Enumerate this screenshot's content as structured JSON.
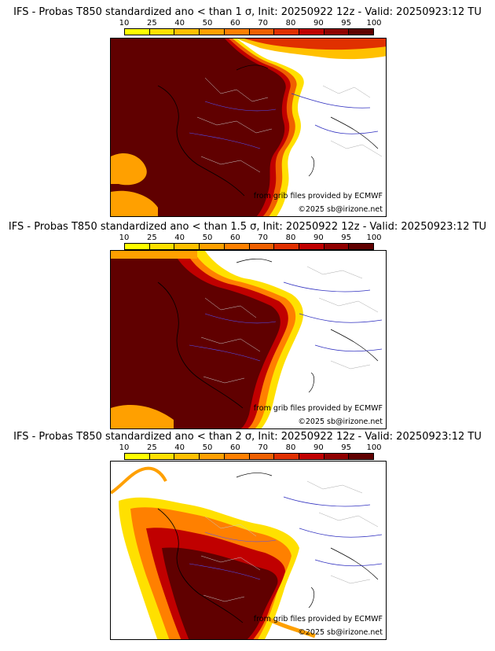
{
  "colorbar": {
    "ticks": [
      "10",
      "25",
      "40",
      "50",
      "60",
      "70",
      "80",
      "90",
      "95",
      "100"
    ],
    "colors": [
      "#ffff00",
      "#ffe000",
      "#ffc000",
      "#ffa000",
      "#ff8000",
      "#f06000",
      "#e03000",
      "#c00000",
      "#900000",
      "#600000"
    ]
  },
  "panels": [
    {
      "title": "IFS - Probas T850  standardized ano < than 1 σ, Init: 20250922 12z - Valid: 20250923:12 TU",
      "credit_source": "from grib files provided by ECMWF",
      "credit_copyright": "©2025 sb@irizone.net"
    },
    {
      "title": "IFS - Probas T850  standardized ano < than 1.5 σ, Init: 20250922 12z - Valid: 20250923:12 TU",
      "credit_source": "from grib files provided by ECMWF",
      "credit_copyright": "©2025 sb@irizone.net"
    },
    {
      "title": "IFS - Probas T850  standardized ano < than 2 σ, Init: 20250922 12z - Valid: 20250923:12 TU",
      "credit_source": "from grib files provided by ECMWF",
      "credit_copyright": "©2025 sb@irizone.net"
    }
  ]
}
